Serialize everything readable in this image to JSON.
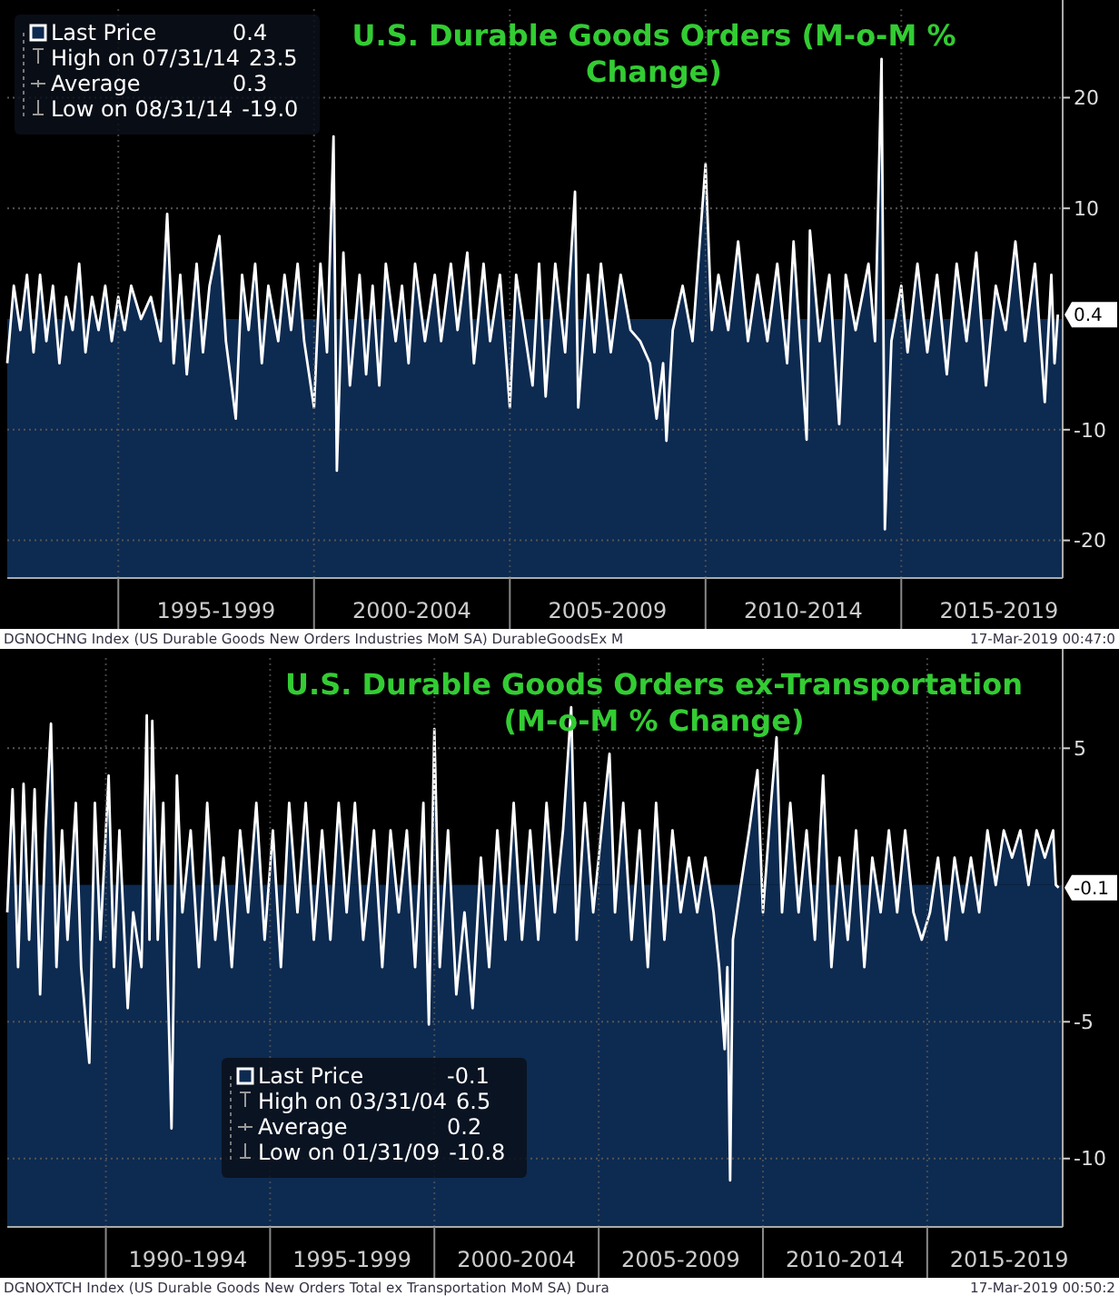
{
  "chart_data": [
    {
      "type": "area",
      "title": "U.S. Durable Goods Orders (M-o-M % Change)",
      "legend": "top left",
      "grid": true,
      "bands": [
        {
          "axis": "y",
          "from": -23.4,
          "to": 0,
          "color": "#0d2a50"
        }
      ],
      "xlim": [
        "1992-03-01",
        "2019-02-15"
      ],
      "ylim": [
        -23.4,
        28
      ],
      "yticks": [
        -20,
        -10,
        10,
        20
      ],
      "xticks": [
        {
          "value": "1995-01-01",
          "label": null
        },
        {
          "value": "2000-01-01",
          "label": null
        },
        {
          "value": "2005-01-01",
          "label": null
        },
        {
          "value": "2010-01-01",
          "label": null
        },
        {
          "value": "2015-01-01",
          "label": null
        },
        {
          "value": "1997-07-01",
          "label": "1995-1999"
        },
        {
          "value": "2002-07-01",
          "label": "2000-2004"
        },
        {
          "value": "2007-07-01",
          "label": "2005-2009"
        },
        {
          "value": "2012-07-01",
          "label": "2010-2014"
        },
        {
          "value": "2017-07-01",
          "label": "2015-2019"
        }
      ],
      "x": [
        "1992-03",
        "1992-05",
        "1992-07",
        "1992-09",
        "1992-11",
        "1993-01",
        "1993-03",
        "1993-05",
        "1993-07",
        "1993-09",
        "1993-11",
        "1994-01",
        "1994-03",
        "1994-05",
        "1994-07",
        "1994-09",
        "1994-11",
        "1995-01",
        "1995-03",
        "1995-05",
        "1995-08",
        "1995-11",
        "1996-02",
        "1996-04",
        "1996-06",
        "1996-08",
        "1996-10",
        "1997-01",
        "1997-03",
        "1997-05",
        "1997-08",
        "1997-10",
        "1998-01",
        "1998-03",
        "1998-05",
        "1998-07",
        "1998-09",
        "1998-11",
        "1999-02",
        "1999-04",
        "1999-06",
        "1999-08",
        "1999-10",
        "2000-01",
        "2000-03",
        "2000-05",
        "2000-07",
        "2000-08",
        "2000-10",
        "2000-12",
        "2001-03",
        "2001-05",
        "2001-07",
        "2001-09",
        "2001-11",
        "2002-02",
        "2002-04",
        "2002-06",
        "2002-08",
        "2002-11",
        "2003-02",
        "2003-04",
        "2003-07",
        "2003-09",
        "2003-12",
        "2004-02",
        "2004-05",
        "2004-07",
        "2004-10",
        "2005-01",
        "2005-03",
        "2005-06",
        "2005-08",
        "2005-10",
        "2005-12",
        "2006-03",
        "2006-06",
        "2006-09",
        "2006-10",
        "2007-01",
        "2007-03",
        "2007-05",
        "2007-08",
        "2007-11",
        "2008-02",
        "2008-05",
        "2008-08",
        "2008-10",
        "2008-12",
        "2009-01",
        "2009-03",
        "2009-06",
        "2009-09",
        "2010-01",
        "2010-03",
        "2010-05",
        "2010-08",
        "2010-11",
        "2011-02",
        "2011-05",
        "2011-08",
        "2011-11",
        "2012-02",
        "2012-04",
        "2012-08",
        "2012-09",
        "2012-12",
        "2013-03",
        "2013-06",
        "2013-08",
        "2013-11",
        "2014-03",
        "2014-05",
        "2014-07",
        "2014-08",
        "2014-10",
        "2015-01",
        "2015-03",
        "2015-06",
        "2015-09",
        "2015-12",
        "2016-03",
        "2016-06",
        "2016-09",
        "2016-12",
        "2017-03",
        "2017-06",
        "2017-09",
        "2017-12",
        "2018-03",
        "2018-06",
        "2018-09",
        "2018-11",
        "2018-12",
        "2019-01"
      ],
      "series": [
        {
          "name": "Last Price",
          "color": "#0d2a50",
          "values": [
            -4,
            3,
            -1,
            4,
            -3,
            4,
            -2,
            3,
            -4,
            2,
            -1,
            5,
            -3,
            2,
            -1,
            3,
            -2,
            2,
            -1,
            3,
            0,
            2,
            -2,
            9.5,
            -4,
            4,
            -5,
            5,
            -3,
            3,
            7.5,
            -2,
            -9,
            4,
            -1,
            5,
            -4,
            3,
            -2,
            4,
            -1,
            5,
            -2,
            -8,
            5,
            -3,
            16.5,
            -13.7,
            6,
            -6,
            4,
            -5,
            3,
            -6,
            5,
            -2,
            3,
            -4,
            5,
            -2,
            4,
            -2,
            5,
            -1,
            6,
            -4,
            5,
            -2,
            4,
            -8,
            4,
            -2,
            -6,
            5,
            -7,
            5,
            -3,
            11.5,
            -8,
            4,
            -3,
            5,
            -3,
            4,
            -1,
            -2,
            -4,
            -9,
            -4,
            -11,
            -1,
            3,
            -2,
            14,
            -1,
            4,
            -1,
            7,
            -2,
            4,
            -2,
            5,
            -4,
            7,
            -10.9,
            8,
            -2,
            4,
            -9.5,
            4,
            -1,
            5,
            -2,
            23.5,
            -19,
            -2,
            3,
            -3,
            5,
            -3,
            4,
            -5,
            5,
            -2,
            6,
            -6,
            3,
            -1,
            7,
            -2,
            5,
            -7.5,
            4,
            -4,
            0.4
          ]
        }
      ],
      "annotations": [
        {
          "text": "0.4",
          "x": "2019-01",
          "y": 0.4
        },
        "High on 07/31/14 23.5",
        "Average 0.3",
        "Low on 08/31/14 -19.0",
        "DGNOCHNG Index (US Durable Goods New Orders Industries MoM SA) DurableGoodsEx  M",
        "17-Mar-2019 00:47:0"
      ]
    },
    {
      "type": "area",
      "title": "U.S. Durable Goods Orders ex-Transportation (M-o-M % Change)",
      "legend": "bottom left",
      "grid": true,
      "bands": [
        {
          "axis": "y",
          "from": -12.5,
          "to": 0,
          "color": "#0d2a50"
        }
      ],
      "xlim": [
        "1987-01-01",
        "2019-02-15"
      ],
      "ylim": [
        -12.5,
        8.3
      ],
      "yticks": [
        -10,
        -5,
        5
      ],
      "xticks": [
        {
          "value": "1990-01-01",
          "label": null
        },
        {
          "value": "1995-01-01",
          "label": null
        },
        {
          "value": "2000-01-01",
          "label": null
        },
        {
          "value": "2005-01-01",
          "label": null
        },
        {
          "value": "2010-01-01",
          "label": null
        },
        {
          "value": "2015-01-01",
          "label": null
        },
        {
          "value": "1992-07-01",
          "label": "1990-1994"
        },
        {
          "value": "1997-07-01",
          "label": "1995-1999"
        },
        {
          "value": "2002-07-01",
          "label": "2000-2004"
        },
        {
          "value": "2007-07-01",
          "label": "2005-2009"
        },
        {
          "value": "2012-07-01",
          "label": "2010-2014"
        },
        {
          "value": "2017-07-01",
          "label": "2015-2019"
        }
      ],
      "x": [
        "1987-01",
        "1987-03",
        "1987-05",
        "1987-07",
        "1987-09",
        "1987-11",
        "1988-01",
        "1988-03",
        "1988-05",
        "1988-07",
        "1988-09",
        "1988-11",
        "1989-02",
        "1989-04",
        "1989-07",
        "1989-09",
        "1989-11",
        "1990-02",
        "1990-04",
        "1990-06",
        "1990-09",
        "1990-11",
        "1991-02",
        "1991-04",
        "1991-05",
        "1991-06",
        "1991-08",
        "1991-10",
        "1992-01",
        "1992-03",
        "1992-05",
        "1992-08",
        "1992-11",
        "1993-02",
        "1993-05",
        "1993-08",
        "1993-11",
        "1994-02",
        "1994-05",
        "1994-08",
        "1994-11",
        "1995-02",
        "1995-05",
        "1995-08",
        "1995-11",
        "1996-02",
        "1996-05",
        "1996-08",
        "1996-11",
        "1997-02",
        "1997-05",
        "1997-08",
        "1997-11",
        "1998-03",
        "1998-06",
        "1998-09",
        "1998-12",
        "1999-03",
        "1999-06",
        "1999-09",
        "1999-11",
        "2000-01",
        "2000-03",
        "2000-06",
        "2000-09",
        "2000-12",
        "2001-03",
        "2001-06",
        "2001-09",
        "2001-12",
        "2002-03",
        "2002-06",
        "2002-09",
        "2002-12",
        "2003-03",
        "2003-06",
        "2003-09",
        "2003-12",
        "2004-03",
        "2004-05",
        "2004-08",
        "2004-11",
        "2005-02",
        "2005-05",
        "2005-07",
        "2005-10",
        "2006-01",
        "2006-04",
        "2006-07",
        "2006-10",
        "2007-01",
        "2007-04",
        "2007-07",
        "2007-10",
        "2008-01",
        "2008-04",
        "2008-07",
        "2008-09",
        "2008-11",
        "2008-12",
        "2009-01",
        "2009-02",
        "2009-05",
        "2009-08",
        "2009-11",
        "2010-01",
        "2010-04",
        "2010-06",
        "2010-08",
        "2010-11",
        "2011-02",
        "2011-05",
        "2011-08",
        "2011-11",
        "2012-02",
        "2012-05",
        "2012-08",
        "2012-11",
        "2013-02",
        "2013-05",
        "2013-08",
        "2013-11",
        "2014-02",
        "2014-05",
        "2014-08",
        "2014-11",
        "2015-02",
        "2015-05",
        "2015-08",
        "2015-11",
        "2016-02",
        "2016-05",
        "2016-08",
        "2016-11",
        "2017-02",
        "2017-05",
        "2017-08",
        "2017-11",
        "2018-02",
        "2018-05",
        "2018-08",
        "2018-11",
        "2018-12",
        "2019-01"
      ],
      "series": [
        {
          "name": "Last Price",
          "color": "#0d2a50",
          "values": [
            -1,
            3.5,
            -3,
            3.7,
            -2,
            3.5,
            -4,
            2,
            5.9,
            -3,
            2,
            -2,
            3,
            -3,
            -6.5,
            3,
            -2,
            4,
            -3,
            2,
            -4.5,
            -1,
            -3,
            6.2,
            -2,
            6,
            -2,
            3,
            -8.9,
            4,
            -1,
            2,
            -3,
            3,
            -2,
            1,
            -3,
            2,
            -1,
            3,
            -2,
            2,
            -3,
            3,
            -1,
            3,
            -2,
            2,
            -2,
            3,
            -1,
            3,
            -2,
            2,
            -3,
            2,
            -1,
            2,
            -3,
            3,
            -5.1,
            5.7,
            -3,
            2,
            -4,
            -1,
            -4.5,
            1,
            -3,
            2,
            -2,
            3,
            -2,
            2,
            -2,
            3,
            -1,
            2,
            6.5,
            -2,
            3,
            -1,
            2,
            4.8,
            -1,
            3,
            -2,
            2,
            -3,
            3,
            -2,
            2,
            -1,
            1,
            -1,
            1,
            -1,
            -3,
            -6,
            -3,
            -10.8,
            -2,
            0,
            2,
            4.2,
            -1,
            3,
            5.4,
            -1,
            3,
            -1,
            2,
            -2,
            4,
            -3,
            1,
            -2,
            2,
            -3,
            1,
            -1,
            2,
            -1,
            2,
            -1,
            -2,
            -1,
            1,
            -2,
            1,
            -1,
            1,
            -1,
            2,
            0,
            2,
            1,
            2,
            0,
            2,
            1,
            2,
            0,
            -0.1
          ]
        }
      ],
      "annotations": [
        {
          "text": "-0.1",
          "x": "2019-01",
          "y": -0.1
        },
        "High on 03/31/04 6.5",
        "Average 0.2",
        "Low on 01/31/09 -10.8",
        "DGNOXTCH Index (US Durable Goods New Orders Total ex Transportation MoM SA) Dura",
        "17-Mar-2019 00:50:2"
      ]
    }
  ]
}
